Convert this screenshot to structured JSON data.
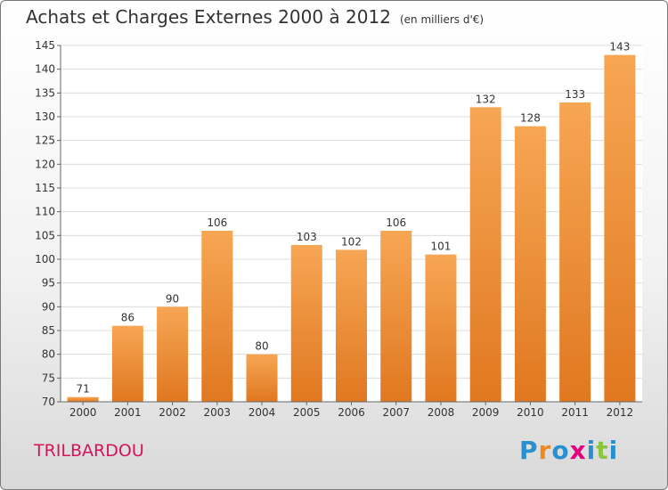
{
  "title": "Achats et Charges Externes 2000 à 2012",
  "subtitle": "(en milliers d'€)",
  "commune": "TRILBARDOU",
  "logo": {
    "text": "Proxiti",
    "letters": [
      {
        "ch": "P",
        "color": "#2a8fd0"
      },
      {
        "ch": "r",
        "color": "#f08a1c"
      },
      {
        "ch": "o",
        "color": "#2a8fd0"
      },
      {
        "ch": "x",
        "color": "#e4007f"
      },
      {
        "ch": "i",
        "color": "#2a8fd0"
      },
      {
        "ch": "t",
        "color": "#8bc53f"
      },
      {
        "ch": "i",
        "color": "#2a8fd0"
      }
    ]
  },
  "colors": {
    "bar_top": "#f7a654",
    "bar_bottom": "#e07820",
    "grid": "#dcdcdc",
    "commune": "#d4145a"
  },
  "chart_data": {
    "type": "bar",
    "categories": [
      "2000",
      "2001",
      "2002",
      "2003",
      "2004",
      "2005",
      "2006",
      "2007",
      "2008",
      "2009",
      "2010",
      "2011",
      "2012"
    ],
    "values": [
      71,
      86,
      90,
      106,
      80,
      103,
      102,
      106,
      101,
      132,
      128,
      133,
      143
    ],
    "ylim": [
      70,
      145
    ],
    "yticks": [
      70,
      75,
      80,
      85,
      90,
      95,
      100,
      105,
      110,
      115,
      120,
      125,
      130,
      135,
      140,
      145
    ],
    "grid": true
  }
}
